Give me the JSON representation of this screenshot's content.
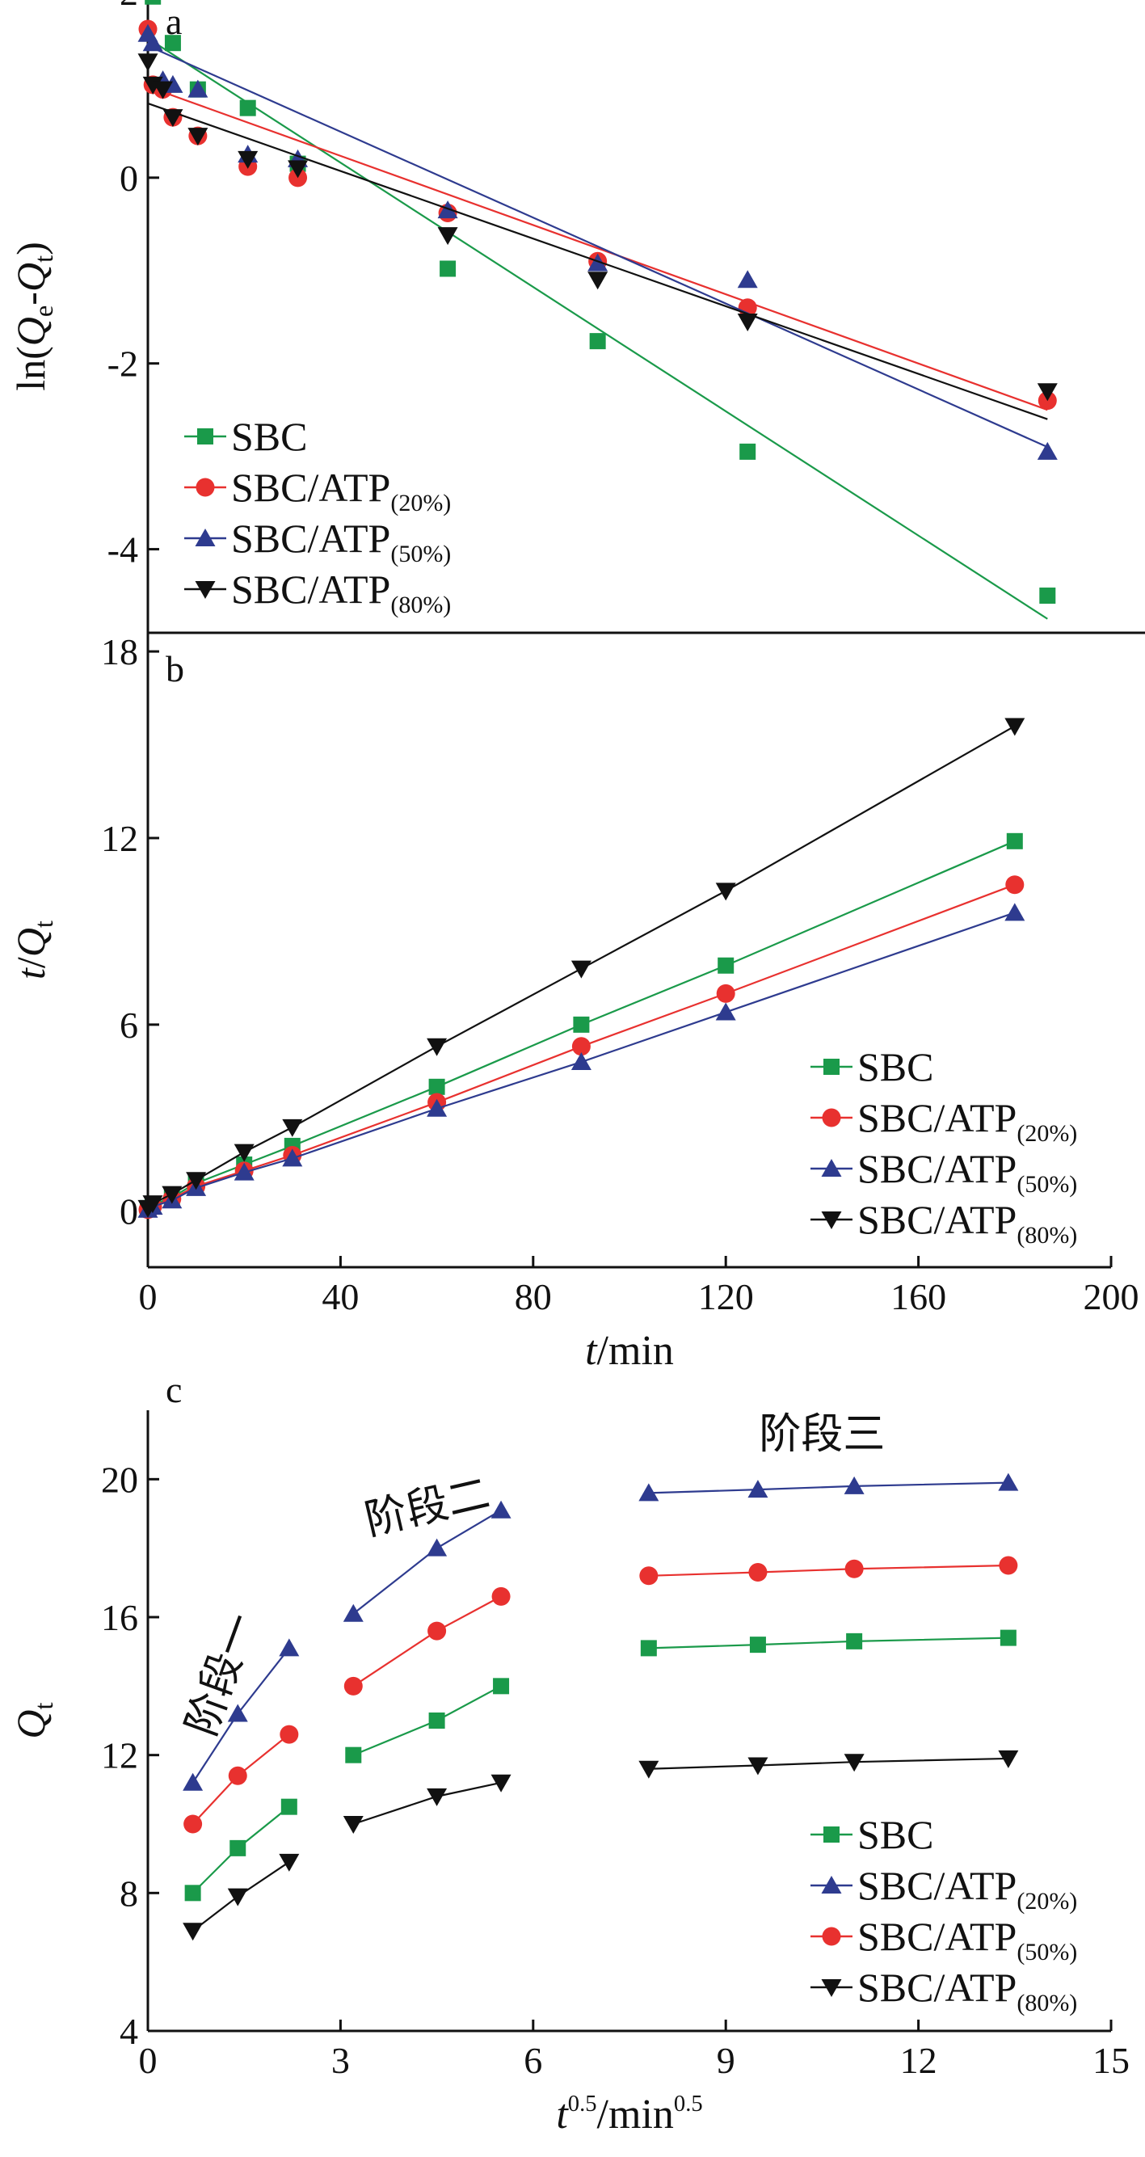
{
  "chart_data": [
    {
      "panel_label": "a",
      "type": "scatter",
      "xlabel": "",
      "ylabel": "ln(Qe-Qt)",
      "xlim": [
        0,
        200
      ],
      "ylim": [
        -4.9,
        2.0
      ],
      "x_ticks": [],
      "y_ticks": [
        "2",
        "0",
        "-2",
        "-4"
      ],
      "legend_position": "bottom-left",
      "series": [
        {
          "name": "SBC",
          "sub": "",
          "color": "#1a9a4a",
          "marker": "square",
          "x": [
            1,
            5,
            10,
            20,
            30,
            60,
            90,
            120,
            180
          ],
          "y": [
            1.95,
            1.45,
            0.95,
            0.75,
            0.15,
            -0.98,
            -1.76,
            -2.95,
            -4.5
          ],
          "fit": [
            [
              0,
              1.5
            ],
            [
              180,
              -4.75
            ]
          ]
        },
        {
          "name": "SBC/ATP",
          "sub": "(20%)",
          "color": "#e8312f",
          "marker": "circle",
          "x": [
            0,
            1,
            3,
            5,
            10,
            20,
            30,
            60,
            90,
            120,
            180
          ],
          "y": [
            1.6,
            1.0,
            0.95,
            0.65,
            0.45,
            0.12,
            0.0,
            -0.38,
            -0.9,
            -1.4,
            -2.4
          ],
          "fit": [
            [
              0,
              0.98
            ],
            [
              180,
              -2.5
            ]
          ]
        },
        {
          "name": "SBC/ATP",
          "sub": "(50%)",
          "color": "#2e3b8f",
          "marker": "triangle-up",
          "x": [
            0,
            1,
            3,
            5,
            10,
            20,
            30,
            60,
            90,
            120,
            180
          ],
          "y": [
            1.55,
            1.45,
            1.05,
            1.0,
            0.95,
            0.25,
            0.2,
            -0.35,
            -0.92,
            -1.1,
            -2.95
          ],
          "fit": [
            [
              0,
              1.42
            ],
            [
              180,
              -2.9
            ]
          ]
        },
        {
          "name": "SBC/ATP",
          "sub": "(80%)",
          "color": "#111111",
          "marker": "triangle-down",
          "x": [
            0,
            1,
            3,
            5,
            10,
            20,
            30,
            60,
            90,
            120,
            180
          ],
          "y": [
            1.25,
            1.0,
            0.95,
            0.65,
            0.45,
            0.2,
            0.1,
            -0.62,
            -1.1,
            -1.55,
            -2.3
          ],
          "fit": [
            [
              0,
              0.8
            ],
            [
              180,
              -2.6
            ]
          ]
        }
      ]
    },
    {
      "panel_label": "b",
      "type": "line",
      "xlabel": "t/min",
      "ylabel": "t/Qt",
      "xlim": [
        0,
        200
      ],
      "ylim": [
        -1.8,
        18.6
      ],
      "x_ticks": [
        "0",
        "40",
        "80",
        "120",
        "160",
        "200"
      ],
      "y_ticks": [
        "0",
        "6",
        "12",
        "18"
      ],
      "legend_position": "bottom-right",
      "series": [
        {
          "name": "SBC",
          "sub": "",
          "color": "#1a9a4a",
          "marker": "square",
          "x": [
            0,
            1,
            5,
            10,
            20,
            30,
            60,
            90,
            120,
            180
          ],
          "y": [
            0.1,
            0.2,
            0.45,
            0.9,
            1.5,
            2.1,
            4.0,
            6.0,
            7.9,
            11.9
          ]
        },
        {
          "name": "SBC/ATP",
          "sub": "(20%)",
          "color": "#e8312f",
          "marker": "circle",
          "x": [
            0,
            1,
            5,
            10,
            20,
            30,
            60,
            90,
            120,
            180
          ],
          "y": [
            0.05,
            0.15,
            0.4,
            0.8,
            1.3,
            1.8,
            3.5,
            5.3,
            7.0,
            10.5
          ]
        },
        {
          "name": "SBC/ATP",
          "sub": "(50%)",
          "color": "#2e3b8f",
          "marker": "triangle-up",
          "x": [
            0,
            1,
            5,
            10,
            20,
            30,
            60,
            90,
            120,
            180
          ],
          "y": [
            0.05,
            0.15,
            0.35,
            0.75,
            1.25,
            1.7,
            3.3,
            4.8,
            6.4,
            9.6
          ]
        },
        {
          "name": "SBC/ATP",
          "sub": "(80%)",
          "color": "#111111",
          "marker": "triangle-down",
          "x": [
            0,
            1,
            5,
            10,
            20,
            30,
            60,
            90,
            120,
            180
          ],
          "y": [
            0.1,
            0.25,
            0.55,
            1.0,
            1.9,
            2.7,
            5.3,
            7.8,
            10.3,
            15.6
          ]
        }
      ]
    },
    {
      "panel_label": "c",
      "type": "line",
      "xlabel": "t0.5/min0.5",
      "ylabel": "Qt",
      "xlim": [
        0,
        15
      ],
      "ylim": [
        4,
        22
      ],
      "x_ticks": [
        "0",
        "3",
        "6",
        "9",
        "12",
        "15"
      ],
      "y_ticks": [
        "4",
        "8",
        "12",
        "16",
        "20"
      ],
      "legend_position": "bottom-right",
      "stage_labels": [
        {
          "text": "阶段一",
          "x": 1.35,
          "y": 14.2,
          "rotate": -70
        },
        {
          "text": "阶段二",
          "x": 4.4,
          "y": 18.8,
          "rotate": -13
        },
        {
          "text": "阶段三",
          "x": 10.5,
          "y": 20.9,
          "rotate": 0
        }
      ],
      "series": [
        {
          "name": "SBC",
          "sub": "",
          "color": "#1a9a4a",
          "marker": "square",
          "segments": [
            {
              "x": [
                0.7,
                1.4,
                2.2
              ],
              "y": [
                8.0,
                9.3,
                10.5
              ]
            },
            {
              "x": [
                3.2,
                4.5,
                5.5
              ],
              "y": [
                12.0,
                13.0,
                14.0
              ]
            },
            {
              "x": [
                7.8,
                9.5,
                11.0,
                13.4
              ],
              "y": [
                15.1,
                15.2,
                15.3,
                15.4
              ]
            }
          ]
        },
        {
          "name": "SBC/ATP",
          "sub": "(20%)",
          "color": "#2e3b8f",
          "marker": "triangle-up",
          "segments": [
            {
              "x": [
                0.7,
                1.4,
                2.2
              ],
              "y": [
                11.2,
                13.2,
                15.1
              ]
            },
            {
              "x": [
                3.2,
                4.5,
                5.5
              ],
              "y": [
                16.1,
                18.0,
                19.1
              ]
            },
            {
              "x": [
                7.8,
                9.5,
                11.0,
                13.4
              ],
              "y": [
                19.6,
                19.7,
                19.8,
                19.9
              ]
            }
          ]
        },
        {
          "name": "SBC/ATP",
          "sub": "(50%)",
          "color": "#e8312f",
          "marker": "circle",
          "segments": [
            {
              "x": [
                0.7,
                1.4,
                2.2
              ],
              "y": [
                10.0,
                11.4,
                12.6
              ]
            },
            {
              "x": [
                3.2,
                4.5,
                5.5
              ],
              "y": [
                14.0,
                15.6,
                16.6
              ]
            },
            {
              "x": [
                7.8,
                9.5,
                11.0,
                13.4
              ],
              "y": [
                17.2,
                17.3,
                17.4,
                17.5
              ]
            }
          ]
        },
        {
          "name": "SBC/ATP",
          "sub": "(80%)",
          "color": "#111111",
          "marker": "triangle-down",
          "segments": [
            {
              "x": [
                0.7,
                1.4,
                2.2
              ],
              "y": [
                6.9,
                7.9,
                8.9
              ]
            },
            {
              "x": [
                3.2,
                4.5,
                5.5
              ],
              "y": [
                10.0,
                10.8,
                11.2
              ]
            },
            {
              "x": [
                7.8,
                9.5,
                11.0,
                13.4
              ],
              "y": [
                11.6,
                11.7,
                11.8,
                11.9
              ]
            }
          ]
        }
      ]
    }
  ]
}
